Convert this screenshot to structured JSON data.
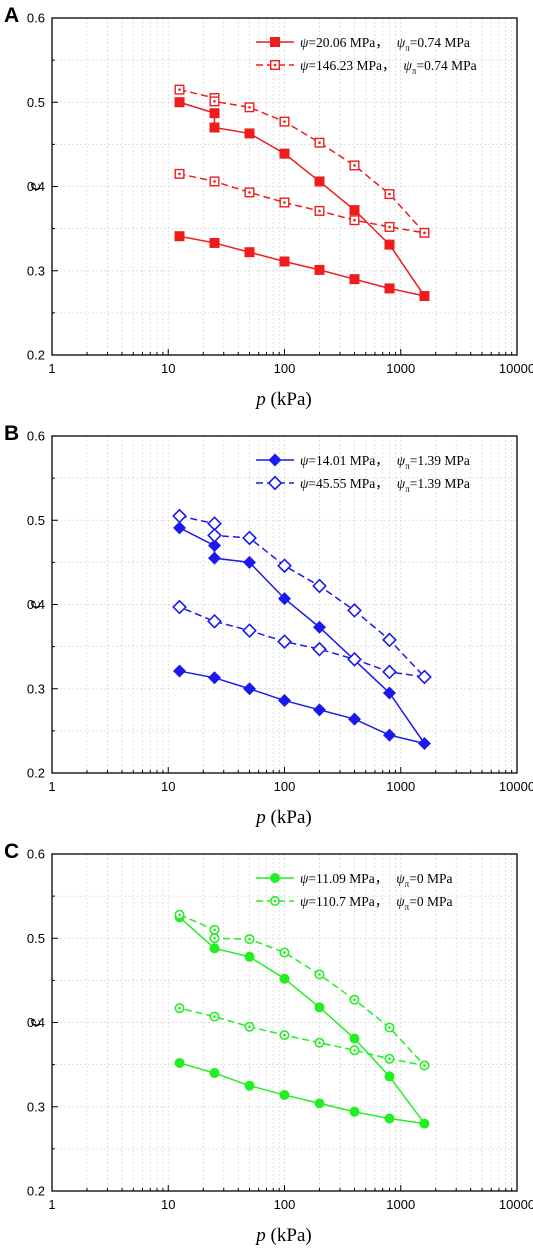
{
  "colors": {
    "A": "#ee1c1c",
    "B": "#1a1aee",
    "C": "#22ee22",
    "axis": "#000000",
    "grid": "#d9d9d9"
  },
  "chart_data": [
    {
      "panel": "A",
      "type": "line",
      "xlabel_var": "p",
      "xlabel_unit": " (kPa)",
      "ylabel": "e",
      "xscale": "log",
      "xlim": [
        1,
        10000
      ],
      "ylim": [
        0.2,
        0.6
      ],
      "xticks": [
        "1",
        "10",
        "100",
        "1000",
        "10000"
      ],
      "yticks": [
        "0.2",
        "0.3",
        "0.4",
        "0.5",
        "0.6"
      ],
      "grid": true,
      "legend_position": "top-right",
      "series": [
        {
          "name_a": "ψ",
          "name_b": "=20.06 MPa，",
          "name_c": "ψ",
          "name_d": "π",
          "name_e": "=0.74 MPa",
          "marker": "filled-square",
          "line": "solid",
          "x": [
            12.5,
            25,
            25,
            50,
            100,
            200,
            400,
            800,
            1600,
            800,
            400,
            200,
            100,
            50,
            25,
            12.5
          ],
          "y": [
            0.5,
            0.487,
            0.47,
            0.463,
            0.439,
            0.406,
            0.372,
            0.331,
            0.27,
            0.279,
            0.29,
            0.301,
            0.311,
            0.322,
            0.333,
            0.341
          ]
        },
        {
          "name_a": "ψ",
          "name_b": "=146.23 MPa，",
          "name_c": "ψ",
          "name_d": "π",
          "name_e": "=0.74 MPa",
          "marker": "open-square-dot",
          "line": "dashed",
          "x": [
            12.5,
            25,
            25,
            50,
            100,
            200,
            400,
            800,
            1600,
            800,
            400,
            200,
            100,
            50,
            25,
            12.5
          ],
          "y": [
            0.515,
            0.505,
            0.501,
            0.494,
            0.477,
            0.452,
            0.425,
            0.391,
            0.345,
            0.352,
            0.36,
            0.371,
            0.381,
            0.393,
            0.406,
            0.415
          ]
        }
      ]
    },
    {
      "panel": "B",
      "type": "line",
      "xlabel_var": "p",
      "xlabel_unit": " (kPa)",
      "ylabel": "e",
      "xscale": "log",
      "xlim": [
        1,
        10000
      ],
      "ylim": [
        0.2,
        0.6
      ],
      "xticks": [
        "1",
        "10",
        "100",
        "1000",
        "10000"
      ],
      "yticks": [
        "0.2",
        "0.3",
        "0.4",
        "0.5",
        "0.6"
      ],
      "grid": true,
      "legend_position": "top-right",
      "series": [
        {
          "name_a": "ψ",
          "name_b": "=14.01 MPa，",
          "name_c": "ψ",
          "name_d": "π",
          "name_e": "=1.39 MPa",
          "marker": "filled-diamond",
          "line": "solid",
          "x": [
            12.5,
            25,
            25,
            50,
            100,
            200,
            400,
            800,
            1600,
            800,
            400,
            200,
            100,
            50,
            25,
            12.5
          ],
          "y": [
            0.491,
            0.47,
            0.455,
            0.45,
            0.407,
            0.373,
            0.334,
            0.295,
            0.235,
            0.245,
            0.264,
            0.275,
            0.286,
            0.3,
            0.313,
            0.321
          ]
        },
        {
          "name_a": "ψ",
          "name_b": "=45.55 MPa，",
          "name_c": "ψ",
          "name_d": "π",
          "name_e": "=1.39 MPa",
          "marker": "open-diamond",
          "line": "dashed",
          "x": [
            12.5,
            25,
            25,
            50,
            100,
            200,
            400,
            800,
            1600,
            800,
            400,
            200,
            100,
            50,
            25,
            12.5
          ],
          "y": [
            0.505,
            0.496,
            0.482,
            0.479,
            0.446,
            0.422,
            0.393,
            0.358,
            0.314,
            0.32,
            0.335,
            0.347,
            0.356,
            0.369,
            0.38,
            0.397
          ]
        }
      ]
    },
    {
      "panel": "C",
      "type": "line",
      "xlabel_var": "p",
      "xlabel_unit": " (kPa)",
      "ylabel": "e",
      "xscale": "log",
      "xlim": [
        1,
        10000
      ],
      "ylim": [
        0.2,
        0.6
      ],
      "xticks": [
        "1",
        "10",
        "100",
        "1000",
        "10000"
      ],
      "yticks": [
        "0.2",
        "0.3",
        "0.4",
        "0.5",
        "0.6"
      ],
      "grid": true,
      "legend_position": "top-right",
      "series": [
        {
          "name_a": "ψ",
          "name_b": "=11.09 MPa，",
          "name_c": "ψ",
          "name_d": "π",
          "name_e": "=0 MPa",
          "marker": "filled-circle",
          "line": "solid",
          "x": [
            12.5,
            25,
            50,
            100,
            200,
            400,
            800,
            1600,
            800,
            400,
            200,
            100,
            50,
            25,
            12.5
          ],
          "y": [
            0.525,
            0.488,
            0.478,
            0.452,
            0.418,
            0.381,
            0.336,
            0.28,
            0.286,
            0.294,
            0.304,
            0.314,
            0.325,
            0.34,
            0.352
          ]
        },
        {
          "name_a": "ψ",
          "name_b": "=110.7 MPa，",
          "name_c": "ψ",
          "name_d": "π",
          "name_e": "=0 MPa",
          "marker": "open-circle-dot",
          "line": "dashed",
          "x": [
            12.5,
            25,
            25,
            50,
            100,
            200,
            400,
            800,
            1600,
            800,
            400,
            200,
            100,
            50,
            25,
            12.5
          ],
          "y": [
            0.528,
            0.51,
            0.5,
            0.499,
            0.483,
            0.457,
            0.427,
            0.394,
            0.349,
            0.357,
            0.367,
            0.376,
            0.385,
            0.395,
            0.407,
            0.417
          ]
        }
      ]
    }
  ]
}
